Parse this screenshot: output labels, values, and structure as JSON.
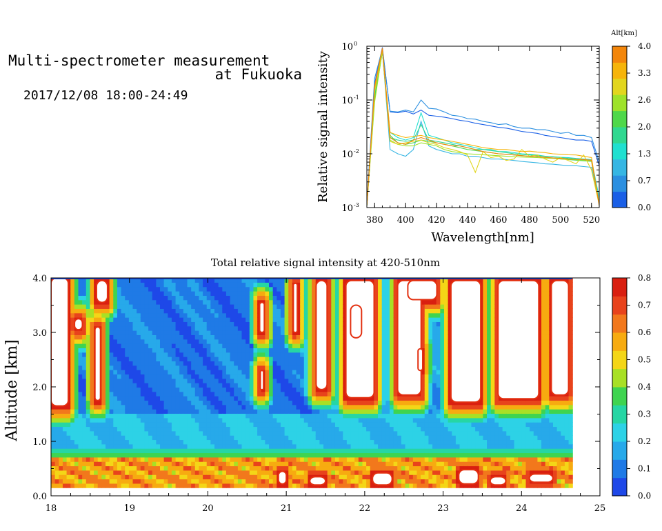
{
  "header": {
    "title_line1": "Multi-spectrometer measurement",
    "title_line2": "at Fukuoka",
    "date_range": "2017/12/08 18:00-24:49"
  },
  "colors": {
    "spectrum_palette": [
      "#1a5fe6",
      "#2b8fe0",
      "#36b6e3",
      "#20e0d0",
      "#30d890",
      "#4fd84a",
      "#9ee22a",
      "#e2d61e",
      "#f6b40a",
      "#f3860b"
    ],
    "intensity_palette": [
      "#1e48e8",
      "#1f7ae6",
      "#27a9ea",
      "#2dd2e6",
      "#26d6a4",
      "#3fd450",
      "#a8e025",
      "#f4d617",
      "#f7ab10",
      "#f2781c",
      "#e8431c",
      "#d91f10"
    ]
  },
  "chart_data": [
    {
      "type": "line",
      "xlabel": "Wavelength[nm]",
      "ylabel": "Relative signal intensity",
      "xlim": [
        375,
        525
      ],
      "ylim": [
        0.001,
        1
      ],
      "yscale": "log",
      "x_ticks": [
        380,
        400,
        420,
        440,
        460,
        480,
        500,
        520
      ],
      "y_ticks": [
        {
          "value": 0.001,
          "base": "10",
          "exp": "-3"
        },
        {
          "value": 0.01,
          "base": "10",
          "exp": "-2"
        },
        {
          "value": 0.1,
          "base": "10",
          "exp": "-1"
        },
        {
          "value": 1,
          "base": "10",
          "exp": "0"
        }
      ],
      "x": [
        375,
        380,
        385,
        390,
        395,
        400,
        405,
        410,
        415,
        420,
        425,
        430,
        435,
        440,
        445,
        450,
        455,
        460,
        465,
        470,
        475,
        480,
        485,
        490,
        495,
        500,
        505,
        510,
        515,
        520,
        525
      ],
      "series": [
        {
          "altitude": 0.0,
          "values": [
            0.0012,
            0.2,
            0.95,
            0.06,
            0.058,
            0.062,
            0.055,
            0.065,
            0.052,
            0.05,
            0.048,
            0.045,
            0.042,
            0.04,
            0.037,
            0.035,
            0.033,
            0.031,
            0.03,
            0.028,
            0.026,
            0.025,
            0.024,
            0.022,
            0.021,
            0.02,
            0.019,
            0.018,
            0.018,
            0.017,
            0.006
          ]
        },
        {
          "altitude": 0.4,
          "values": [
            0.0012,
            0.25,
            0.9,
            0.062,
            0.06,
            0.065,
            0.06,
            0.1,
            0.07,
            0.068,
            0.06,
            0.052,
            0.05,
            0.045,
            0.044,
            0.04,
            0.038,
            0.035,
            0.036,
            0.032,
            0.03,
            0.03,
            0.028,
            0.028,
            0.026,
            0.024,
            0.025,
            0.022,
            0.022,
            0.02,
            0.007
          ]
        },
        {
          "altitude": 0.9,
          "values": [
            0.0011,
            0.15,
            0.85,
            0.012,
            0.01,
            0.009,
            0.012,
            0.04,
            0.014,
            0.012,
            0.011,
            0.01,
            0.01,
            0.009,
            0.009,
            0.0085,
            0.008,
            0.008,
            0.0078,
            0.0075,
            0.0072,
            0.007,
            0.0068,
            0.0065,
            0.0064,
            0.0062,
            0.006,
            0.006,
            0.0058,
            0.0056,
            0.0012
          ]
        },
        {
          "altitude": 1.2,
          "values": [
            0.0011,
            0.12,
            0.8,
            0.025,
            0.02,
            0.018,
            0.02,
            0.058,
            0.022,
            0.02,
            0.018,
            0.016,
            0.015,
            0.014,
            0.013,
            0.012,
            0.012,
            0.011,
            0.011,
            0.0105,
            0.01,
            0.0098,
            0.0095,
            0.009,
            0.0088,
            0.0086,
            0.0085,
            0.0082,
            0.008,
            0.0078,
            0.0015
          ]
        },
        {
          "altitude": 1.6,
          "values": [
            0.0011,
            0.1,
            0.78,
            0.02,
            0.018,
            0.017,
            0.018,
            0.035,
            0.018,
            0.017,
            0.016,
            0.015,
            0.014,
            0.013,
            0.012,
            0.012,
            0.0115,
            0.011,
            0.0105,
            0.01,
            0.0098,
            0.0095,
            0.0092,
            0.009,
            0.0088,
            0.0085,
            0.0082,
            0.008,
            0.0078,
            0.0075,
            0.0012
          ]
        },
        {
          "altitude": 2.0,
          "values": [
            0.0011,
            0.11,
            0.8,
            0.022,
            0.016,
            0.015,
            0.016,
            0.018,
            0.017,
            0.016,
            0.015,
            0.014,
            0.013,
            0.012,
            0.0115,
            0.011,
            0.0105,
            0.01,
            0.0098,
            0.0095,
            0.0093,
            0.009,
            0.0088,
            0.0085,
            0.0083,
            0.008,
            0.0078,
            0.0076,
            0.0074,
            0.0072,
            0.0011
          ]
        },
        {
          "altitude": 2.6,
          "values": [
            0.0011,
            0.09,
            0.82,
            0.018,
            0.015,
            0.014,
            0.014,
            0.016,
            0.015,
            0.014,
            0.012,
            0.011,
            0.0105,
            0.01,
            0.0098,
            0.0096,
            0.0094,
            0.0092,
            0.009,
            0.0088,
            0.0087,
            0.0086,
            0.0085,
            0.0083,
            0.0082,
            0.008,
            0.0079,
            0.0078,
            0.0076,
            0.0074,
            0.0011
          ]
        },
        {
          "altitude": 3.0,
          "values": [
            0.0011,
            0.14,
            0.86,
            0.017,
            0.015,
            0.016,
            0.017,
            0.018,
            0.016,
            0.015,
            0.013,
            0.012,
            0.011,
            0.0095,
            0.0045,
            0.011,
            0.0085,
            0.009,
            0.0075,
            0.008,
            0.012,
            0.009,
            0.0095,
            0.008,
            0.007,
            0.0085,
            0.0075,
            0.0065,
            0.0095,
            0.005,
            0.0011
          ]
        },
        {
          "altitude": 3.4,
          "values": [
            0.0011,
            0.16,
            0.9,
            0.025,
            0.022,
            0.02,
            0.021,
            0.022,
            0.02,
            0.019,
            0.018,
            0.017,
            0.016,
            0.015,
            0.014,
            0.013,
            0.0125,
            0.012,
            0.012,
            0.0115,
            0.011,
            0.0112,
            0.0108,
            0.0105,
            0.01,
            0.0098,
            0.0096,
            0.0095,
            0.009,
            0.0085,
            0.0011
          ]
        },
        {
          "altitude": 3.8,
          "values": [
            0.0011,
            0.18,
            0.92,
            0.02,
            0.016,
            0.015,
            0.018,
            0.02,
            0.018,
            0.016,
            0.015,
            0.014,
            0.014,
            0.013,
            0.012,
            0.011,
            0.0105,
            0.01,
            0.0098,
            0.0095,
            0.0092,
            0.009,
            0.0088,
            0.0086,
            0.0084,
            0.0082,
            0.008,
            0.0079,
            0.0078,
            0.0076,
            0.0011
          ]
        }
      ],
      "colorbar": {
        "label": "Alt[km]",
        "range": [
          0,
          4
        ],
        "tick_labels": [
          "0.0",
          "0.7",
          "1.3",
          "2.0",
          "2.6",
          "3.3",
          "4.0"
        ]
      }
    },
    {
      "type": "heatmap",
      "title": "Total relative signal intensity at 420-510nm",
      "xlabel": "",
      "ylabel": "Altitude [km]",
      "xlim": [
        18,
        25
      ],
      "ylim": [
        0,
        4
      ],
      "x_ticks": [
        "18",
        "19",
        "20",
        "21",
        "22",
        "23",
        "24",
        "25"
      ],
      "y_ticks": [
        "0.0",
        "1.0",
        "2.0",
        "3.0",
        "4.0"
      ],
      "data_range": {
        "time_start": 18.0,
        "time_end": 24.65,
        "alt_start": 0.15,
        "alt_end": 4.0
      },
      "color_scale": {
        "range": [
          0,
          0.8
        ],
        "over_range_color": "#ffffff",
        "tick_labels": [
          "0.0",
          "0.1",
          "0.2",
          "0.3",
          "0.4",
          "0.5",
          "0.6",
          "0.7",
          "0.8"
        ]
      },
      "saturated_regions": [
        {
          "t": [
            18.0,
            18.22
          ],
          "alt": [
            1.65,
            4.0
          ]
        },
        {
          "t": [
            18.56,
            18.63
          ],
          "alt": [
            1.75,
            3.1
          ]
        },
        {
          "t": [
            18.58,
            18.72
          ],
          "alt": [
            3.55,
            3.95
          ]
        },
        {
          "t": [
            18.3,
            18.4
          ],
          "alt": [
            3.05,
            3.25
          ]
        },
        {
          "t": [
            20.66,
            20.72
          ],
          "alt": [
            3.0,
            3.55
          ]
        },
        {
          "t": [
            20.67,
            20.71
          ],
          "alt": [
            1.95,
            2.3
          ]
        },
        {
          "t": [
            21.09,
            21.14
          ],
          "alt": [
            3.0,
            3.9
          ]
        },
        {
          "t": [
            21.38,
            21.52
          ],
          "alt": [
            1.95,
            3.95
          ]
        },
        {
          "t": [
            21.76,
            22.12
          ],
          "alt": [
            1.8,
            3.95
          ]
        },
        {
          "t": [
            21.82,
            21.96
          ],
          "alt": [
            2.9,
            3.5
          ]
        },
        {
          "t": [
            22.42,
            22.72
          ],
          "alt": [
            1.85,
            3.95
          ]
        },
        {
          "t": [
            22.55,
            22.92
          ],
          "alt": [
            3.6,
            3.95
          ]
        },
        {
          "t": [
            22.68,
            22.74
          ],
          "alt": [
            2.3,
            2.7
          ]
        },
        {
          "t": [
            23.1,
            23.48
          ],
          "alt": [
            1.72,
            3.95
          ]
        },
        {
          "t": [
            23.7,
            24.22
          ],
          "alt": [
            1.78,
            3.95
          ]
        },
        {
          "t": [
            24.38,
            24.6
          ],
          "alt": [
            1.85,
            3.95
          ]
        },
        {
          "t": [
            20.9,
            21.0
          ],
          "alt": [
            0.22,
            0.45
          ]
        },
        {
          "t": [
            21.3,
            21.5
          ],
          "alt": [
            0.2,
            0.35
          ]
        },
        {
          "t": [
            22.1,
            22.35
          ],
          "alt": [
            0.2,
            0.42
          ]
        },
        {
          "t": [
            23.2,
            23.45
          ],
          "alt": [
            0.22,
            0.48
          ]
        },
        {
          "t": [
            23.6,
            23.8
          ],
          "alt": [
            0.2,
            0.35
          ]
        },
        {
          "t": [
            24.1,
            24.4
          ],
          "alt": [
            0.25,
            0.4
          ]
        }
      ]
    }
  ]
}
